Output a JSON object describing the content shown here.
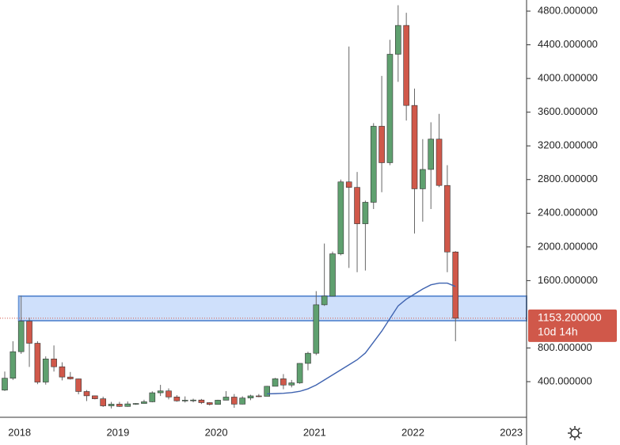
{
  "chart_data": {
    "type": "candlestick",
    "categories": [
      null,
      null,
      "2018",
      null,
      null,
      null,
      null,
      null,
      null,
      null,
      null,
      null,
      null,
      null,
      "2019",
      null,
      null,
      null,
      null,
      null,
      null,
      null,
      null,
      null,
      null,
      null,
      "2020",
      null,
      null,
      null,
      null,
      null,
      null,
      null,
      null,
      null,
      null,
      null,
      "2021",
      null,
      null,
      null,
      null,
      null,
      null,
      null,
      null,
      null,
      null,
      null,
      "2022",
      null,
      null,
      null,
      null,
      null,
      null,
      null,
      null,
      null,
      null,
      null,
      "2023"
    ],
    "open": [
      300,
      441,
      756,
      1118,
      856,
      395,
      670,
      577,
      455,
      433,
      283,
      232,
      197,
      113,
      133,
      106,
      136,
      141,
      161,
      268,
      290,
      218,
      172,
      180,
      182,
      151,
      130,
      180,
      217,
      133,
      206,
      231,
      226,
      345,
      434,
      360,
      386,
      617,
      737,
      1313,
      1416,
      1918,
      2772,
      2707,
      2275,
      2530,
      3433,
      3000,
      4288,
      4630,
      3680,
      2690,
      2920,
      3280,
      2730,
      1940,
      null,
      null,
      null,
      null,
      null,
      null,
      null
    ],
    "high": [
      520,
      880,
      1420,
      1160,
      880,
      700,
      830,
      630,
      515,
      435,
      300,
      235,
      222,
      160,
      160,
      165,
      145,
      185,
      285,
      362,
      320,
      240,
      225,
      198,
      195,
      155,
      185,
      288,
      253,
      227,
      245,
      253,
      350,
      445,
      490,
      420,
      620,
      755,
      1475,
      2040,
      1945,
      2800,
      4380,
      2890,
      2550,
      3470,
      4030,
      4460,
      4870,
      4780,
      3880,
      3280,
      3480,
      3580,
      2970,
      1950,
      null,
      null,
      null,
      null,
      null,
      null,
      null
    ],
    "low": [
      290,
      420,
      730,
      575,
      370,
      365,
      520,
      415,
      425,
      250,
      170,
      190,
      100,
      82,
      100,
      102,
      125,
      140,
      155,
      230,
      190,
      162,
      152,
      155,
      135,
      117,
      127,
      180,
      90,
      130,
      180,
      216,
      226,
      350,
      310,
      332,
      375,
      535,
      715,
      1300,
      1415,
      1900,
      1750,
      1700,
      1720,
      2450,
      2650,
      2970,
      3960,
      3500,
      2160,
      2300,
      2450,
      2710,
      1700,
      880,
      null,
      null,
      null,
      null,
      null,
      null,
      null
    ],
    "close": [
      441,
      756,
      1118,
      856,
      395,
      670,
      577,
      455,
      433,
      283,
      232,
      197,
      113,
      133,
      106,
      136,
      141,
      161,
      268,
      290,
      218,
      172,
      180,
      182,
      151,
      130,
      180,
      217,
      133,
      206,
      231,
      226,
      345,
      434,
      360,
      386,
      617,
      737,
      1313,
      1416,
      1918,
      2772,
      2707,
      2275,
      2530,
      3433,
      3000,
      4288,
      4630,
      3680,
      2690,
      2920,
      3280,
      2730,
      1940,
      1153.2,
      null,
      null,
      null,
      null,
      null,
      null,
      null
    ],
    "up_color": "#5fa06f",
    "down_color": "#d0584a",
    "ma": {
      "color": "#3f63b0",
      "values": [
        null,
        null,
        null,
        null,
        null,
        null,
        null,
        null,
        null,
        null,
        null,
        null,
        null,
        null,
        null,
        null,
        null,
        null,
        null,
        null,
        null,
        null,
        null,
        null,
        null,
        null,
        null,
        null,
        null,
        null,
        null,
        null,
        255,
        258,
        262,
        270,
        285,
        315,
        360,
        420,
        480,
        540,
        600,
        660,
        740,
        870,
        1000,
        1150,
        1300,
        1380,
        1440,
        1500,
        1550,
        1570,
        1570,
        1530,
        null,
        null,
        null,
        null,
        null,
        null,
        null
      ]
    },
    "zone": {
      "low": 1124,
      "high": 1415,
      "color": "#cfe0fb"
    },
    "current_price": {
      "value": 1153.2,
      "label": "1153.200000"
    },
    "countdown": "10d 14h",
    "ylim": [
      -23,
      4932
    ],
    "yticks": [
      {
        "value": 400,
        "label": "400.000000"
      },
      {
        "value": 800,
        "label": "800.000000"
      },
      {
        "value": 1600,
        "label": "1600.000000"
      },
      {
        "value": 2000,
        "label": "2000.000000"
      },
      {
        "value": 2400,
        "label": "2400.000000"
      },
      {
        "value": 2800,
        "label": "2800.000000"
      },
      {
        "value": 3200,
        "label": "3200.000000"
      },
      {
        "value": 3600,
        "label": "3600.000000"
      },
      {
        "value": 4000,
        "label": "4000.000000"
      },
      {
        "value": 4400,
        "label": "4400.000000"
      },
      {
        "value": 4800,
        "label": "4800.000000"
      }
    ]
  }
}
